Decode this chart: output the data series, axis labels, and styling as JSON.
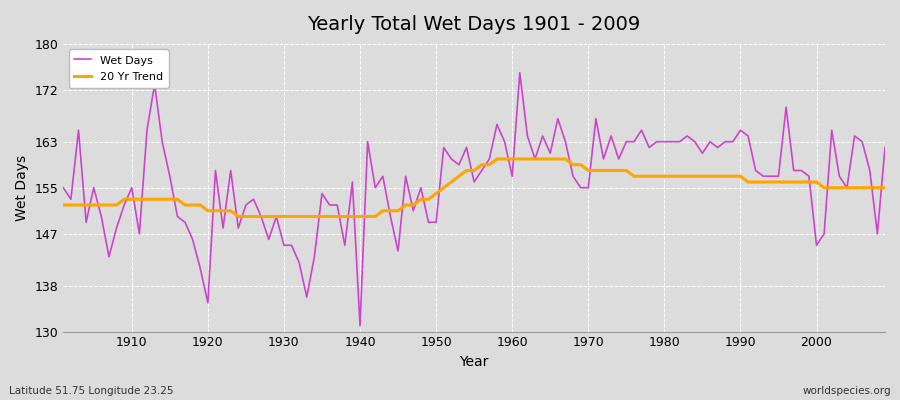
{
  "title": "Yearly Total Wet Days 1901 - 2009",
  "xlabel": "Year",
  "ylabel": "Wet Days",
  "footnote_left": "Latitude 51.75 Longitude 23.25",
  "footnote_right": "worldspecies.org",
  "wet_days_color": "#CC44CC",
  "trend_color": "#FFA500",
  "background_color": "#DCDCDC",
  "fig_background": "#DCDCDC",
  "ylim": [
    130,
    180
  ],
  "xlim": [
    1901,
    2009
  ],
  "yticks": [
    130,
    138,
    147,
    155,
    163,
    172,
    180
  ],
  "xticks": [
    1910,
    1920,
    1930,
    1940,
    1950,
    1960,
    1970,
    1980,
    1990,
    2000
  ],
  "years": [
    1901,
    1902,
    1903,
    1904,
    1905,
    1906,
    1907,
    1908,
    1909,
    1910,
    1911,
    1912,
    1913,
    1914,
    1915,
    1916,
    1917,
    1918,
    1919,
    1920,
    1921,
    1922,
    1923,
    1924,
    1925,
    1926,
    1927,
    1928,
    1929,
    1930,
    1931,
    1932,
    1933,
    1934,
    1935,
    1936,
    1937,
    1938,
    1939,
    1940,
    1941,
    1942,
    1943,
    1944,
    1945,
    1946,
    1947,
    1948,
    1949,
    1950,
    1951,
    1952,
    1953,
    1954,
    1955,
    1956,
    1957,
    1958,
    1959,
    1960,
    1961,
    1962,
    1963,
    1964,
    1965,
    1966,
    1967,
    1968,
    1969,
    1970,
    1971,
    1972,
    1973,
    1974,
    1975,
    1976,
    1977,
    1978,
    1979,
    1980,
    1981,
    1982,
    1983,
    1984,
    1985,
    1986,
    1987,
    1988,
    1989,
    1990,
    1991,
    1992,
    1993,
    1994,
    1995,
    1996,
    1997,
    1998,
    1999,
    2000,
    2001,
    2002,
    2003,
    2004,
    2005,
    2006,
    2007,
    2008,
    2009
  ],
  "wet_days": [
    155,
    153,
    165,
    149,
    155,
    150,
    143,
    148,
    152,
    155,
    147,
    165,
    173,
    163,
    157,
    150,
    149,
    146,
    141,
    135,
    158,
    148,
    158,
    148,
    152,
    153,
    150,
    146,
    150,
    145,
    145,
    142,
    136,
    143,
    154,
    152,
    152,
    145,
    156,
    131,
    163,
    155,
    157,
    150,
    144,
    157,
    151,
    155,
    149,
    149,
    162,
    160,
    159,
    162,
    156,
    158,
    160,
    166,
    163,
    157,
    175,
    164,
    160,
    164,
    161,
    167,
    163,
    157,
    155,
    155,
    167,
    160,
    164,
    160,
    163,
    163,
    165,
    162,
    163,
    163,
    163,
    163,
    164,
    163,
    161,
    163,
    162,
    163,
    163,
    165,
    164,
    158,
    157,
    157,
    157,
    169,
    158,
    158,
    157,
    145,
    147,
    165,
    157,
    155,
    164,
    163,
    158,
    147,
    162
  ],
  "trend": [
    152,
    152,
    152,
    152,
    152,
    152,
    152,
    152,
    153,
    153,
    153,
    153,
    153,
    153,
    153,
    153,
    152,
    152,
    152,
    151,
    151,
    151,
    151,
    150,
    150,
    150,
    150,
    150,
    150,
    150,
    150,
    150,
    150,
    150,
    150,
    150,
    150,
    150,
    150,
    150,
    150,
    150,
    151,
    151,
    151,
    152,
    152,
    153,
    153,
    154,
    155,
    156,
    157,
    158,
    158,
    159,
    159,
    160,
    160,
    160,
    160,
    160,
    160,
    160,
    160,
    160,
    160,
    159,
    159,
    158,
    158,
    158,
    158,
    158,
    158,
    157,
    157,
    157,
    157,
    157,
    157,
    157,
    157,
    157,
    157,
    157,
    157,
    157,
    157,
    157,
    156,
    156,
    156,
    156,
    156,
    156,
    156,
    156,
    156,
    156,
    155,
    155,
    155,
    155,
    155,
    155,
    155,
    155,
    155
  ]
}
